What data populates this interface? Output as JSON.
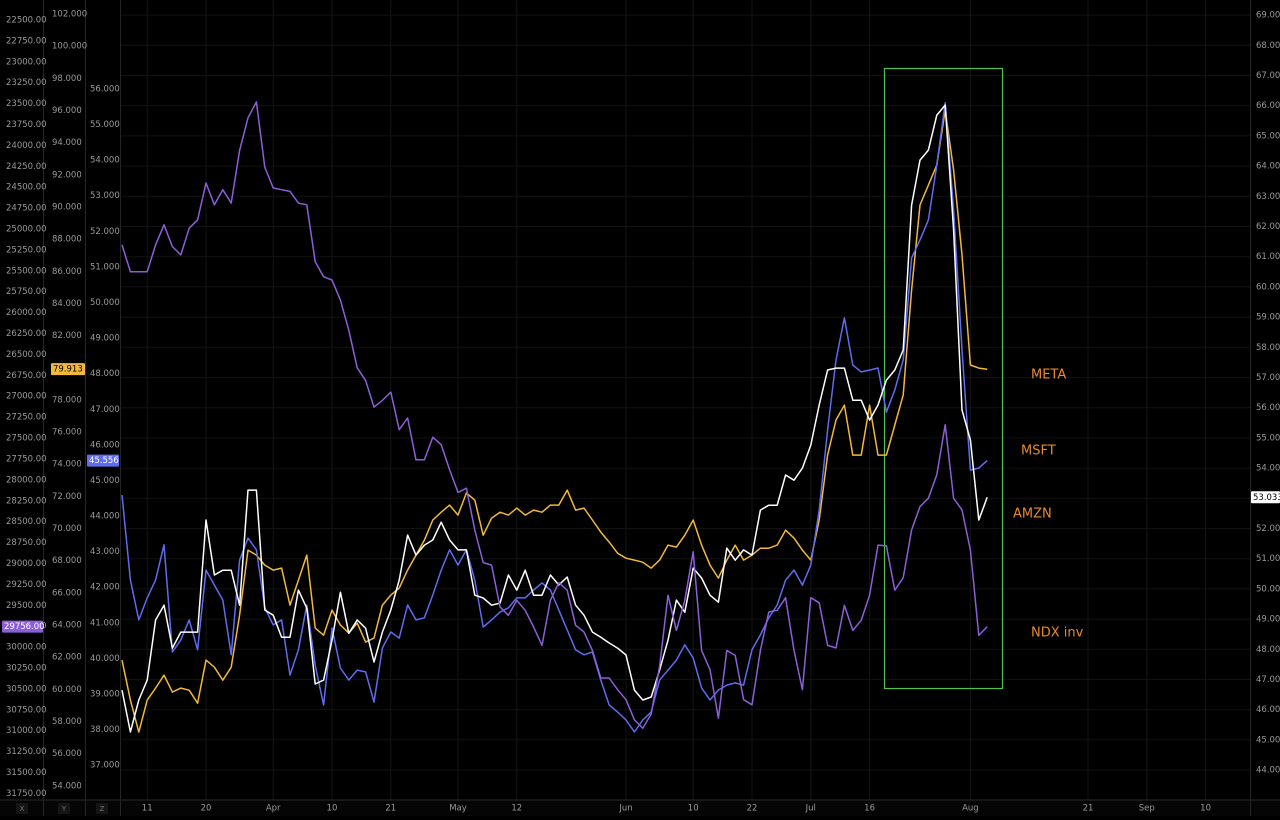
{
  "chart_data": {
    "type": "line",
    "grid": true,
    "categories": [
      null,
      null,
      null,
      "11",
      null,
      null,
      null,
      null,
      null,
      null,
      "20",
      null,
      null,
      null,
      null,
      null,
      null,
      null,
      "Apr",
      null,
      null,
      null,
      null,
      null,
      null,
      "10",
      null,
      null,
      null,
      null,
      null,
      null,
      "21",
      null,
      null,
      null,
      null,
      null,
      null,
      null,
      "May",
      null,
      null,
      null,
      null,
      null,
      null,
      "12",
      null,
      null,
      null,
      null,
      null,
      null,
      null,
      null,
      null,
      null,
      null,
      null,
      "Jun",
      null,
      null,
      null,
      null,
      null,
      null,
      null,
      "10",
      null,
      null,
      null,
      null,
      null,
      null,
      "22",
      null,
      null,
      null,
      null,
      null,
      null,
      "Jul",
      null,
      null,
      null,
      null,
      null,
      null,
      "16",
      null,
      null,
      null,
      null,
      null,
      null,
      null,
      null,
      null,
      null,
      null,
      "Aug",
      null,
      null,
      null,
      null,
      null,
      null,
      null,
      null,
      null,
      null,
      null,
      null,
      null,
      "21",
      null,
      null,
      null,
      null,
      null,
      null,
      "Sep",
      null,
      null,
      null,
      null,
      null,
      null,
      "10",
      null,
      null,
      null,
      null,
      null
    ],
    "series": [
      {
        "name": "META",
        "color": "#f2b83c",
        "axis": "y3",
        "values": [
          61.82,
          59.33,
          57.34,
          59.33,
          60.08,
          60.89,
          59.83,
          60.08,
          59.95,
          59.14,
          61.82,
          61.38,
          60.57,
          61.38,
          64.62,
          68.66,
          68.35,
          67.73,
          67.42,
          67.54,
          65.24,
          66.79,
          68.35,
          63.81,
          63.37,
          64.93,
          64.0,
          63.5,
          64.12,
          62.94,
          63.19,
          65.24,
          65.86,
          66.3,
          67.42,
          68.35,
          69.28,
          70.53,
          71.02,
          71.46,
          70.84,
          72.21,
          71.77,
          69.59,
          70.65,
          71.02,
          70.84,
          71.27,
          70.84,
          71.15,
          71.02,
          71.46,
          71.46,
          72.39,
          71.15,
          71.27,
          70.53,
          69.78,
          69.16,
          68.47,
          68.16,
          68.04,
          67.91,
          67.54,
          68.04,
          68.97,
          68.85,
          69.59,
          70.53,
          68.97,
          67.73,
          66.92,
          68.04,
          68.97,
          68.04,
          68.35,
          68.78,
          68.78,
          68.97,
          69.9,
          69.41,
          68.66,
          68.04,
          70.53,
          74.57,
          76.75,
          77.68,
          74.57,
          74.57,
          77.68,
          74.57,
          74.57,
          76.44,
          78.3,
          84.83,
          90.12,
          91.36,
          92.61,
          96.03,
          92.3,
          87.01,
          80.17,
          79.98,
          79.913,
          null,
          null,
          null,
          null,
          null,
          null,
          null,
          null,
          null,
          null,
          null,
          null,
          null,
          null,
          null,
          null,
          null,
          null,
          null,
          null,
          null,
          null,
          null,
          null,
          null,
          null,
          null,
          null,
          null,
          null,
          null
        ]
      },
      {
        "name": "MSFT",
        "color": "#5e6cf0",
        "axis": "y2",
        "values": [
          44.59,
          42.2,
          41.08,
          41.7,
          42.2,
          43.19,
          40.18,
          40.52,
          41.08,
          40.24,
          42.48,
          42.06,
          41.64,
          40.1,
          42.76,
          43.38,
          43.05,
          41.42,
          40.94,
          41.08,
          39.53,
          40.24,
          41.5,
          39.81,
          38.69,
          40.85,
          39.73,
          39.39,
          39.67,
          39.62,
          38.77,
          40.29,
          40.74,
          40.57,
          41.5,
          41.08,
          41.14,
          41.78,
          42.48,
          43.05,
          42.62,
          43.05,
          42.2,
          40.88,
          41.08,
          41.3,
          41.42,
          41.7,
          41.7,
          41.92,
          42.12,
          41.92,
          41.36,
          40.8,
          40.24,
          40.1,
          40.18,
          39.39,
          38.69,
          38.49,
          38.27,
          37.93,
          38.27,
          38.49,
          39.39,
          39.67,
          39.95,
          40.38,
          40.01,
          39.17,
          38.83,
          39.11,
          39.25,
          39.31,
          39.25,
          40.24,
          40.66,
          41.14,
          41.5,
          42.2,
          42.48,
          42.06,
          42.62,
          44.17,
          46.42,
          48.38,
          49.57,
          48.24,
          48.05,
          48.1,
          48.16,
          46.92,
          47.54,
          48.38,
          51.25,
          51.76,
          52.32,
          53.86,
          55.61,
          52.6,
          48.67,
          45.29,
          45.35,
          45.556,
          null,
          null,
          null,
          null,
          null,
          null,
          null,
          null,
          null,
          null,
          null,
          null,
          null,
          null,
          null,
          null,
          null,
          null,
          null,
          null,
          null,
          null,
          null,
          null,
          null,
          null,
          null,
          null,
          null,
          null,
          null
        ]
      },
      {
        "name": "AMZN",
        "color": "#ffffff",
        "axis": "y",
        "values": [
          46.65,
          45.26,
          46.32,
          46.98,
          48.97,
          49.46,
          48.04,
          48.57,
          48.57,
          48.57,
          52.28,
          50.46,
          50.62,
          50.62,
          49.46,
          53.27,
          53.27,
          49.3,
          49.13,
          48.4,
          48.4,
          49.96,
          49.36,
          46.85,
          46.98,
          48.3,
          49.89,
          48.53,
          48.97,
          48.7,
          47.58,
          48.57,
          49.3,
          50.29,
          51.78,
          51.12,
          51.45,
          51.62,
          52.21,
          51.62,
          51.29,
          51.29,
          49.79,
          49.7,
          49.46,
          49.53,
          50.46,
          49.96,
          50.62,
          49.79,
          49.79,
          50.46,
          50.13,
          50.39,
          49.46,
          49.13,
          48.57,
          48.4,
          48.21,
          48.04,
          47.81,
          46.65,
          46.32,
          46.42,
          47.31,
          48.3,
          49.63,
          49.23,
          50.69,
          50.36,
          49.79,
          49.56,
          51.35,
          50.95,
          51.29,
          51.12,
          52.61,
          52.77,
          52.77,
          53.77,
          53.6,
          54.0,
          54.76,
          56.09,
          57.25,
          57.31,
          57.31,
          56.25,
          56.25,
          55.59,
          56.09,
          56.91,
          57.25,
          57.91,
          62.71,
          64.2,
          64.53,
          65.69,
          66.02,
          61.88,
          55.92,
          54.93,
          52.28,
          53.033,
          null,
          null,
          null,
          null,
          null,
          null,
          null,
          null,
          null,
          null,
          null,
          null,
          null,
          null,
          null,
          null,
          null,
          null,
          null,
          null,
          null,
          null,
          null,
          null,
          null,
          null,
          null,
          null,
          null,
          null,
          null
        ]
      },
      {
        "name": "NDX inv",
        "color": "#8c5fd9",
        "axis": "y4",
        "last_value_label": "29756.00",
        "values": [
          25190,
          25510,
          25510,
          25510,
          25190,
          24950,
          25210,
          25310,
          24990,
          24890,
          24450,
          24710,
          24530,
          24690,
          24060,
          23670,
          23480,
          24260,
          24510,
          24530,
          24550,
          24690,
          24710,
          25390,
          25570,
          25610,
          25850,
          26210,
          26660,
          26810,
          27130,
          27050,
          26950,
          27400,
          27260,
          27760,
          27760,
          27490,
          27580,
          27880,
          28150,
          28100,
          28600,
          28990,
          29020,
          29520,
          29620,
          29440,
          29560,
          29760,
          29980,
          29440,
          29230,
          29320,
          29740,
          29820,
          30040,
          30370,
          30370,
          30510,
          30630,
          30870,
          30970,
          30800,
          30230,
          29380,
          29800,
          29440,
          28860,
          30040,
          30270,
          30850,
          30040,
          30100,
          30630,
          30690,
          30040,
          29580,
          29560,
          29410,
          30040,
          30510,
          29410,
          29470,
          29980,
          30010,
          29500,
          29800,
          29680,
          29380,
          28780,
          28790,
          29320,
          29170,
          28600,
          28320,
          28220,
          27940,
          27340,
          28220,
          28360,
          28840,
          29860,
          29756,
          null,
          null,
          null,
          null,
          null,
          null,
          null,
          null,
          null,
          null,
          null,
          null,
          null,
          null,
          null,
          null,
          null,
          null,
          null,
          null,
          null,
          null,
          null,
          null,
          null,
          null,
          null,
          null,
          null,
          null,
          null
        ]
      }
    ],
    "ylim": [
      43.01,
      69.5
    ],
    "yticks": [
      {
        "value": 44,
        "label": "44.000"
      },
      {
        "value": 45,
        "label": "45.000"
      },
      {
        "value": 46,
        "label": "46.000"
      },
      {
        "value": 47,
        "label": "47.000"
      },
      {
        "value": 48,
        "label": "48.000"
      },
      {
        "value": 49,
        "label": "49.000"
      },
      {
        "value": 50,
        "label": "50.000"
      },
      {
        "value": 51,
        "label": "51.000"
      },
      {
        "value": 52,
        "label": "52.000"
      },
      {
        "value": 53,
        "label": "53.000"
      },
      {
        "value": 54,
        "label": "54.000"
      },
      {
        "value": 55,
        "label": "55.000"
      },
      {
        "value": 56,
        "label": "56.000"
      },
      {
        "value": 57,
        "label": "57.000"
      },
      {
        "value": 58,
        "label": "58.000"
      },
      {
        "value": 59,
        "label": "59.000"
      },
      {
        "value": 60,
        "label": "60.000"
      },
      {
        "value": 61,
        "label": "61.000"
      },
      {
        "value": 62,
        "label": "62.000"
      },
      {
        "value": 63,
        "label": "63.000"
      },
      {
        "value": 64,
        "label": "64.000"
      },
      {
        "value": 65,
        "label": "65.000"
      },
      {
        "value": 66,
        "label": "66.000"
      },
      {
        "value": 67,
        "label": "67.000"
      },
      {
        "value": 68,
        "label": "68.000"
      },
      {
        "value": 69,
        "label": "69.000"
      }
    ],
    "y2lim": [
      36.02,
      58.5
    ],
    "y2ticks": [
      {
        "value": 37,
        "label": "37.000"
      },
      {
        "value": 38,
        "label": "38.000"
      },
      {
        "value": 39,
        "label": "39.000"
      },
      {
        "value": 40,
        "label": "40.000"
      },
      {
        "value": 41,
        "label": "41.000"
      },
      {
        "value": 42,
        "label": "42.000"
      },
      {
        "value": 43,
        "label": "43.000"
      },
      {
        "value": 44,
        "label": "44.000"
      },
      {
        "value": 45,
        "label": "45.000"
      },
      {
        "value": 46,
        "label": "46.000"
      },
      {
        "value": 47,
        "label": "47.000"
      },
      {
        "value": 48,
        "label": "48.000"
      },
      {
        "value": 49,
        "label": "49.000"
      },
      {
        "value": 50,
        "label": "50.000"
      },
      {
        "value": 51,
        "label": "51.000"
      },
      {
        "value": 52,
        "label": "52.000"
      },
      {
        "value": 53,
        "label": "53.000"
      },
      {
        "value": 54,
        "label": "54.000"
      },
      {
        "value": 55,
        "label": "55.000"
      },
      {
        "value": 56,
        "label": "56.000"
      }
    ],
    "y3lim": [
      53.12,
      102.87
    ],
    "y3ticks": [
      {
        "value": 54,
        "label": "54.000"
      },
      {
        "value": 56,
        "label": "56.000"
      },
      {
        "value": 58,
        "label": "58.000"
      },
      {
        "value": 60,
        "label": "60.000"
      },
      {
        "value": 62,
        "label": "62.000"
      },
      {
        "value": 64,
        "label": "64.000"
      },
      {
        "value": 66,
        "label": "66.000"
      },
      {
        "value": 68,
        "label": "68.000"
      },
      {
        "value": 70,
        "label": "70.000"
      },
      {
        "value": 72,
        "label": "72.000"
      },
      {
        "value": 74,
        "label": "74.000"
      },
      {
        "value": 76,
        "label": "76.000"
      },
      {
        "value": 78,
        "label": "78.000"
      },
      {
        "value": 80,
        "label": "80.000"
      },
      {
        "value": 82,
        "label": "82.000"
      },
      {
        "value": 84,
        "label": "84.000"
      },
      {
        "value": 86,
        "label": "86.000"
      },
      {
        "value": 88,
        "label": "88.000"
      },
      {
        "value": 90,
        "label": "90.000"
      },
      {
        "value": 92,
        "label": "92.000"
      },
      {
        "value": 94,
        "label": "94.000"
      },
      {
        "value": 96,
        "label": "96.000"
      },
      {
        "value": 98,
        "label": "98.000"
      },
      {
        "value": 100,
        "label": "100.000"
      },
      {
        "value": 102,
        "label": "102.000"
      }
    ],
    "y4lim": [
      31829,
      22261
    ],
    "y4ticks": [
      {
        "value": 22500,
        "label": "22500.00"
      },
      {
        "value": 22750,
        "label": "22750.00"
      },
      {
        "value": 23000,
        "label": "23000.00"
      },
      {
        "value": 23250,
        "label": "23250.00"
      },
      {
        "value": 23500,
        "label": "23500.00"
      },
      {
        "value": 23750,
        "label": "23750.00"
      },
      {
        "value": 24000,
        "label": "24000.00"
      },
      {
        "value": 24250,
        "label": "24250.00"
      },
      {
        "value": 24500,
        "label": "24500.00"
      },
      {
        "value": 24750,
        "label": "24750.00"
      },
      {
        "value": 25000,
        "label": "25000.00"
      },
      {
        "value": 25250,
        "label": "25250.00"
      },
      {
        "value": 25500,
        "label": "25500.00"
      },
      {
        "value": 25750,
        "label": "25750.00"
      },
      {
        "value": 26000,
        "label": "26000.00"
      },
      {
        "value": 26250,
        "label": "26250.00"
      },
      {
        "value": 26500,
        "label": "26500.00"
      },
      {
        "value": 26750,
        "label": "26750.00"
      },
      {
        "value": 27000,
        "label": "27000.00"
      },
      {
        "value": 27250,
        "label": "27250.00"
      },
      {
        "value": 27500,
        "label": "27500.00"
      },
      {
        "value": 27750,
        "label": "27750.00"
      },
      {
        "value": 28000,
        "label": "28000.00"
      },
      {
        "value": 28250,
        "label": "28250.00"
      },
      {
        "value": 28500,
        "label": "28500.00"
      },
      {
        "value": 28750,
        "label": "28750.00"
      },
      {
        "value": 29000,
        "label": "29000.00"
      },
      {
        "value": 29250,
        "label": "29250.00"
      },
      {
        "value": 29500,
        "label": "29500.00"
      },
      {
        "value": 29750,
        "label": "29750.00"
      },
      {
        "value": 30000,
        "label": "30000.00"
      },
      {
        "value": 30250,
        "label": "30250.00"
      },
      {
        "value": 30500,
        "label": "30500.00"
      },
      {
        "value": 30750,
        "label": "30750.00"
      },
      {
        "value": 31000,
        "label": "31000.00"
      },
      {
        "value": 31250,
        "label": "31250.00"
      },
      {
        "value": 31500,
        "label": "31500.00"
      },
      {
        "value": 31750,
        "label": "31750.00"
      }
    ]
  },
  "ui": {
    "axis_buttons": [
      "X",
      "Y",
      "Z"
    ]
  }
}
